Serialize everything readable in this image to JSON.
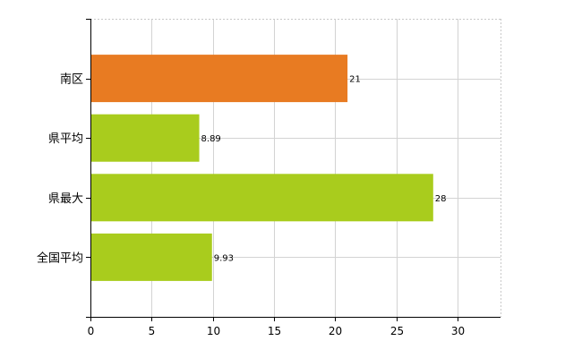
{
  "chart_data": {
    "type": "bar",
    "orientation": "horizontal",
    "categories": [
      "南区",
      "県平均",
      "県最大",
      "全国平均"
    ],
    "values": [
      21,
      8.89,
      28,
      9.93
    ],
    "data_labels": [
      "21",
      "8.89",
      "28",
      "9.93"
    ],
    "bar_colors": [
      "#E87B22",
      "#A9CC1D",
      "#A9CC1D",
      "#A9CC1D"
    ],
    "xlim": [
      0,
      33.5
    ],
    "x_ticks": [
      0,
      5,
      10,
      15,
      20,
      25,
      30
    ],
    "x_tick_labels": [
      "0",
      "5",
      "10",
      "15",
      "20",
      "25",
      "30"
    ],
    "grid": true,
    "legend": "none"
  }
}
